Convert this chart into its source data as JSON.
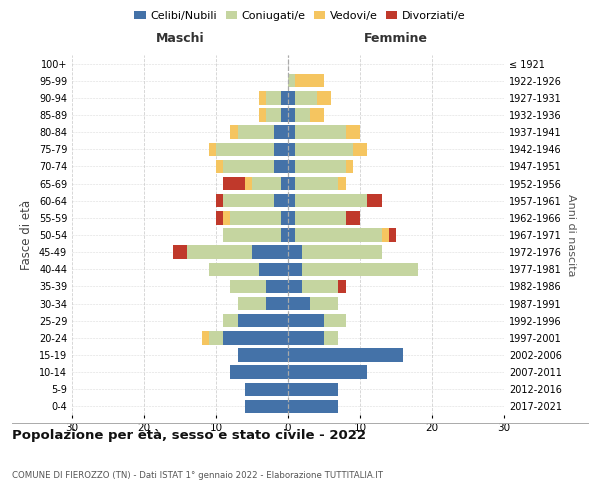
{
  "age_groups": [
    "0-4",
    "5-9",
    "10-14",
    "15-19",
    "20-24",
    "25-29",
    "30-34",
    "35-39",
    "40-44",
    "45-49",
    "50-54",
    "55-59",
    "60-64",
    "65-69",
    "70-74",
    "75-79",
    "80-84",
    "85-89",
    "90-94",
    "95-99",
    "100+"
  ],
  "birth_years": [
    "2017-2021",
    "2012-2016",
    "2007-2011",
    "2002-2006",
    "1997-2001",
    "1992-1996",
    "1987-1991",
    "1982-1986",
    "1977-1981",
    "1972-1976",
    "1967-1971",
    "1962-1966",
    "1957-1961",
    "1952-1956",
    "1947-1951",
    "1942-1946",
    "1937-1941",
    "1932-1936",
    "1927-1931",
    "1922-1926",
    "≤ 1921"
  ],
  "males": {
    "celibe": [
      6,
      6,
      8,
      7,
      9,
      7,
      3,
      3,
      4,
      5,
      1,
      1,
      2,
      1,
      2,
      2,
      2,
      1,
      1,
      0,
      0
    ],
    "coniugato": [
      0,
      0,
      0,
      0,
      2,
      2,
      4,
      5,
      7,
      9,
      8,
      7,
      7,
      4,
      7,
      8,
      5,
      2,
      2,
      0,
      0
    ],
    "vedovo": [
      0,
      0,
      0,
      0,
      1,
      0,
      0,
      0,
      0,
      0,
      0,
      1,
      0,
      1,
      1,
      1,
      1,
      1,
      1,
      0,
      0
    ],
    "divorziato": [
      0,
      0,
      0,
      0,
      0,
      0,
      0,
      0,
      0,
      2,
      0,
      1,
      1,
      3,
      0,
      0,
      0,
      0,
      0,
      0,
      0
    ]
  },
  "females": {
    "nubile": [
      7,
      7,
      11,
      16,
      5,
      5,
      3,
      2,
      2,
      2,
      1,
      1,
      1,
      1,
      1,
      1,
      1,
      1,
      1,
      0,
      0
    ],
    "coniugata": [
      0,
      0,
      0,
      0,
      2,
      3,
      4,
      5,
      16,
      11,
      12,
      7,
      10,
      6,
      7,
      8,
      7,
      2,
      3,
      1,
      0
    ],
    "vedova": [
      0,
      0,
      0,
      0,
      0,
      0,
      0,
      0,
      0,
      0,
      1,
      0,
      0,
      1,
      1,
      2,
      2,
      2,
      2,
      4,
      0
    ],
    "divorziata": [
      0,
      0,
      0,
      0,
      0,
      0,
      0,
      1,
      0,
      0,
      1,
      2,
      2,
      0,
      0,
      0,
      0,
      0,
      0,
      0,
      0
    ]
  },
  "colors": {
    "celibe": "#4472a8",
    "coniugato": "#c5d5a0",
    "vedovo": "#f5c560",
    "divorziato": "#c0392b"
  },
  "xlim": 30,
  "title": "Popolazione per età, sesso e stato civile - 2022",
  "subtitle": "COMUNE DI FIEROZZO (TN) - Dati ISTAT 1° gennaio 2022 - Elaborazione TUTTITALIA.IT",
  "ylabel_left": "Fasce di età",
  "ylabel_right": "Anni di nascita",
  "xlabel_left": "Maschi",
  "xlabel_right": "Femmine",
  "bg_color": "#ffffff",
  "grid_color": "#cccccc"
}
